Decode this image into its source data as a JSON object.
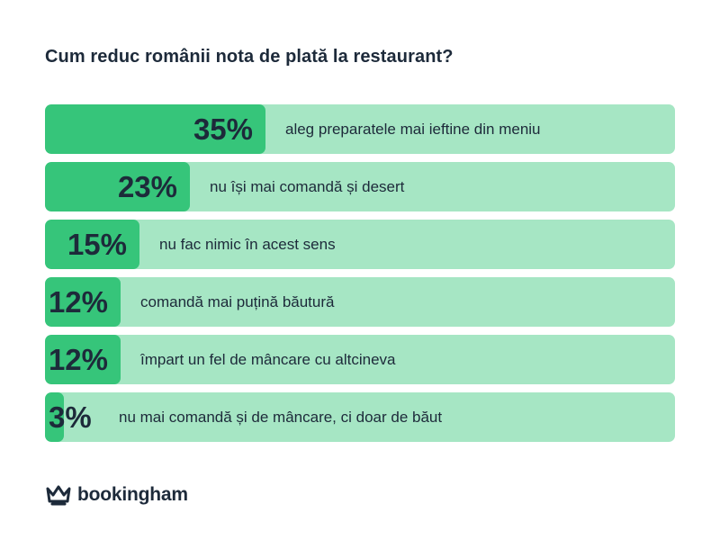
{
  "chart_data": {
    "type": "bar",
    "orientation": "horizontal",
    "title": "Cum reduc românii nota de plată la restaurant?",
    "xlim": [
      0,
      100
    ],
    "categories": [
      "aleg preparatele mai ieftine din meniu",
      "nu își mai comandă și desert",
      "nu fac nimic în acest sens",
      "comandă mai puțină băutură",
      "împart un fel de mâncare cu altcineva",
      "nu mai comandă și de mâncare, ci doar de băut"
    ],
    "values": [
      35,
      23,
      15,
      12,
      12,
      3
    ],
    "value_labels": [
      "35%",
      "23%",
      "15%",
      "12%",
      "12%",
      "3%"
    ],
    "colors": {
      "bar": "#36c57a",
      "track": "#a6e6c4"
    }
  },
  "brand": {
    "name": "bookingham",
    "icon": "crown-icon"
  }
}
